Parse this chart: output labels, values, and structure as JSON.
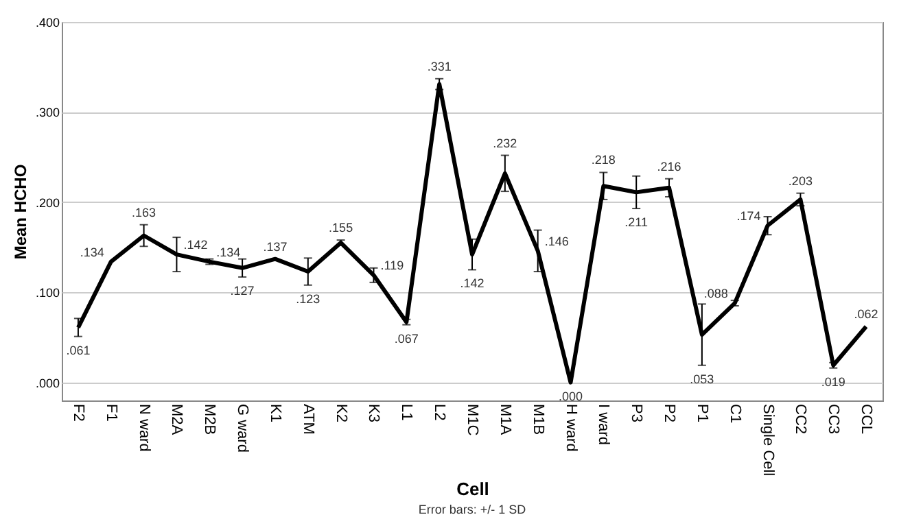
{
  "chart_data": {
    "type": "line",
    "xlabel": "Cell",
    "ylabel": "Mean HCHO",
    "categories": [
      "F2",
      "F1",
      "N ward",
      "M2A",
      "M2B",
      "G ward",
      "K1",
      "ATM",
      "K2",
      "K3",
      "L1",
      "L2",
      "M1C",
      "M1A",
      "M1B",
      "H ward",
      "I ward",
      "P3",
      "P2",
      "P1",
      "C1",
      "Single Cell",
      "CC2",
      "CC3",
      "CCL"
    ],
    "series": [
      {
        "color": "#000000",
        "values": [
          0.061,
          0.134,
          0.163,
          0.142,
          0.134,
          0.127,
          0.137,
          0.123,
          0.155,
          0.119,
          0.067,
          0.331,
          0.142,
          0.232,
          0.146,
          0.0,
          0.218,
          0.211,
          0.216,
          0.053,
          0.088,
          0.174,
          0.203,
          0.019,
          0.062
        ],
        "errors": [
          0.01,
          null,
          0.012,
          0.019,
          0.003,
          0.01,
          null,
          0.015,
          0.003,
          0.008,
          0.003,
          0.006,
          0.017,
          0.02,
          0.023,
          null,
          0.015,
          0.018,
          0.01,
          0.034,
          0.003,
          0.01,
          0.007,
          0.003,
          null
        ],
        "value_labels": [
          ".061",
          ".134",
          ".163",
          ".142",
          ".134",
          ".127",
          ".137",
          ".123",
          ".155",
          ".119",
          ".067",
          ".331",
          ".142",
          ".232",
          ".146",
          ".000",
          ".218",
          ".211",
          ".216",
          ".053",
          ".088",
          ".174",
          ".203",
          ".019",
          ".062"
        ]
      }
    ],
    "ylim": [
      -0.02,
      0.4
    ],
    "yticks": [
      {
        "value": 0,
        "label": ".000"
      },
      {
        "value": 0.1,
        "label": ".100"
      },
      {
        "value": 0.2,
        "label": ".200"
      },
      {
        "value": 0.3,
        "label": ".300"
      },
      {
        "value": 0.4,
        "label": ".400"
      }
    ],
    "grid": "y",
    "marker": "none",
    "line_style": "solid",
    "annotations": [
      "Error bars: +/- 1 SD"
    ]
  }
}
